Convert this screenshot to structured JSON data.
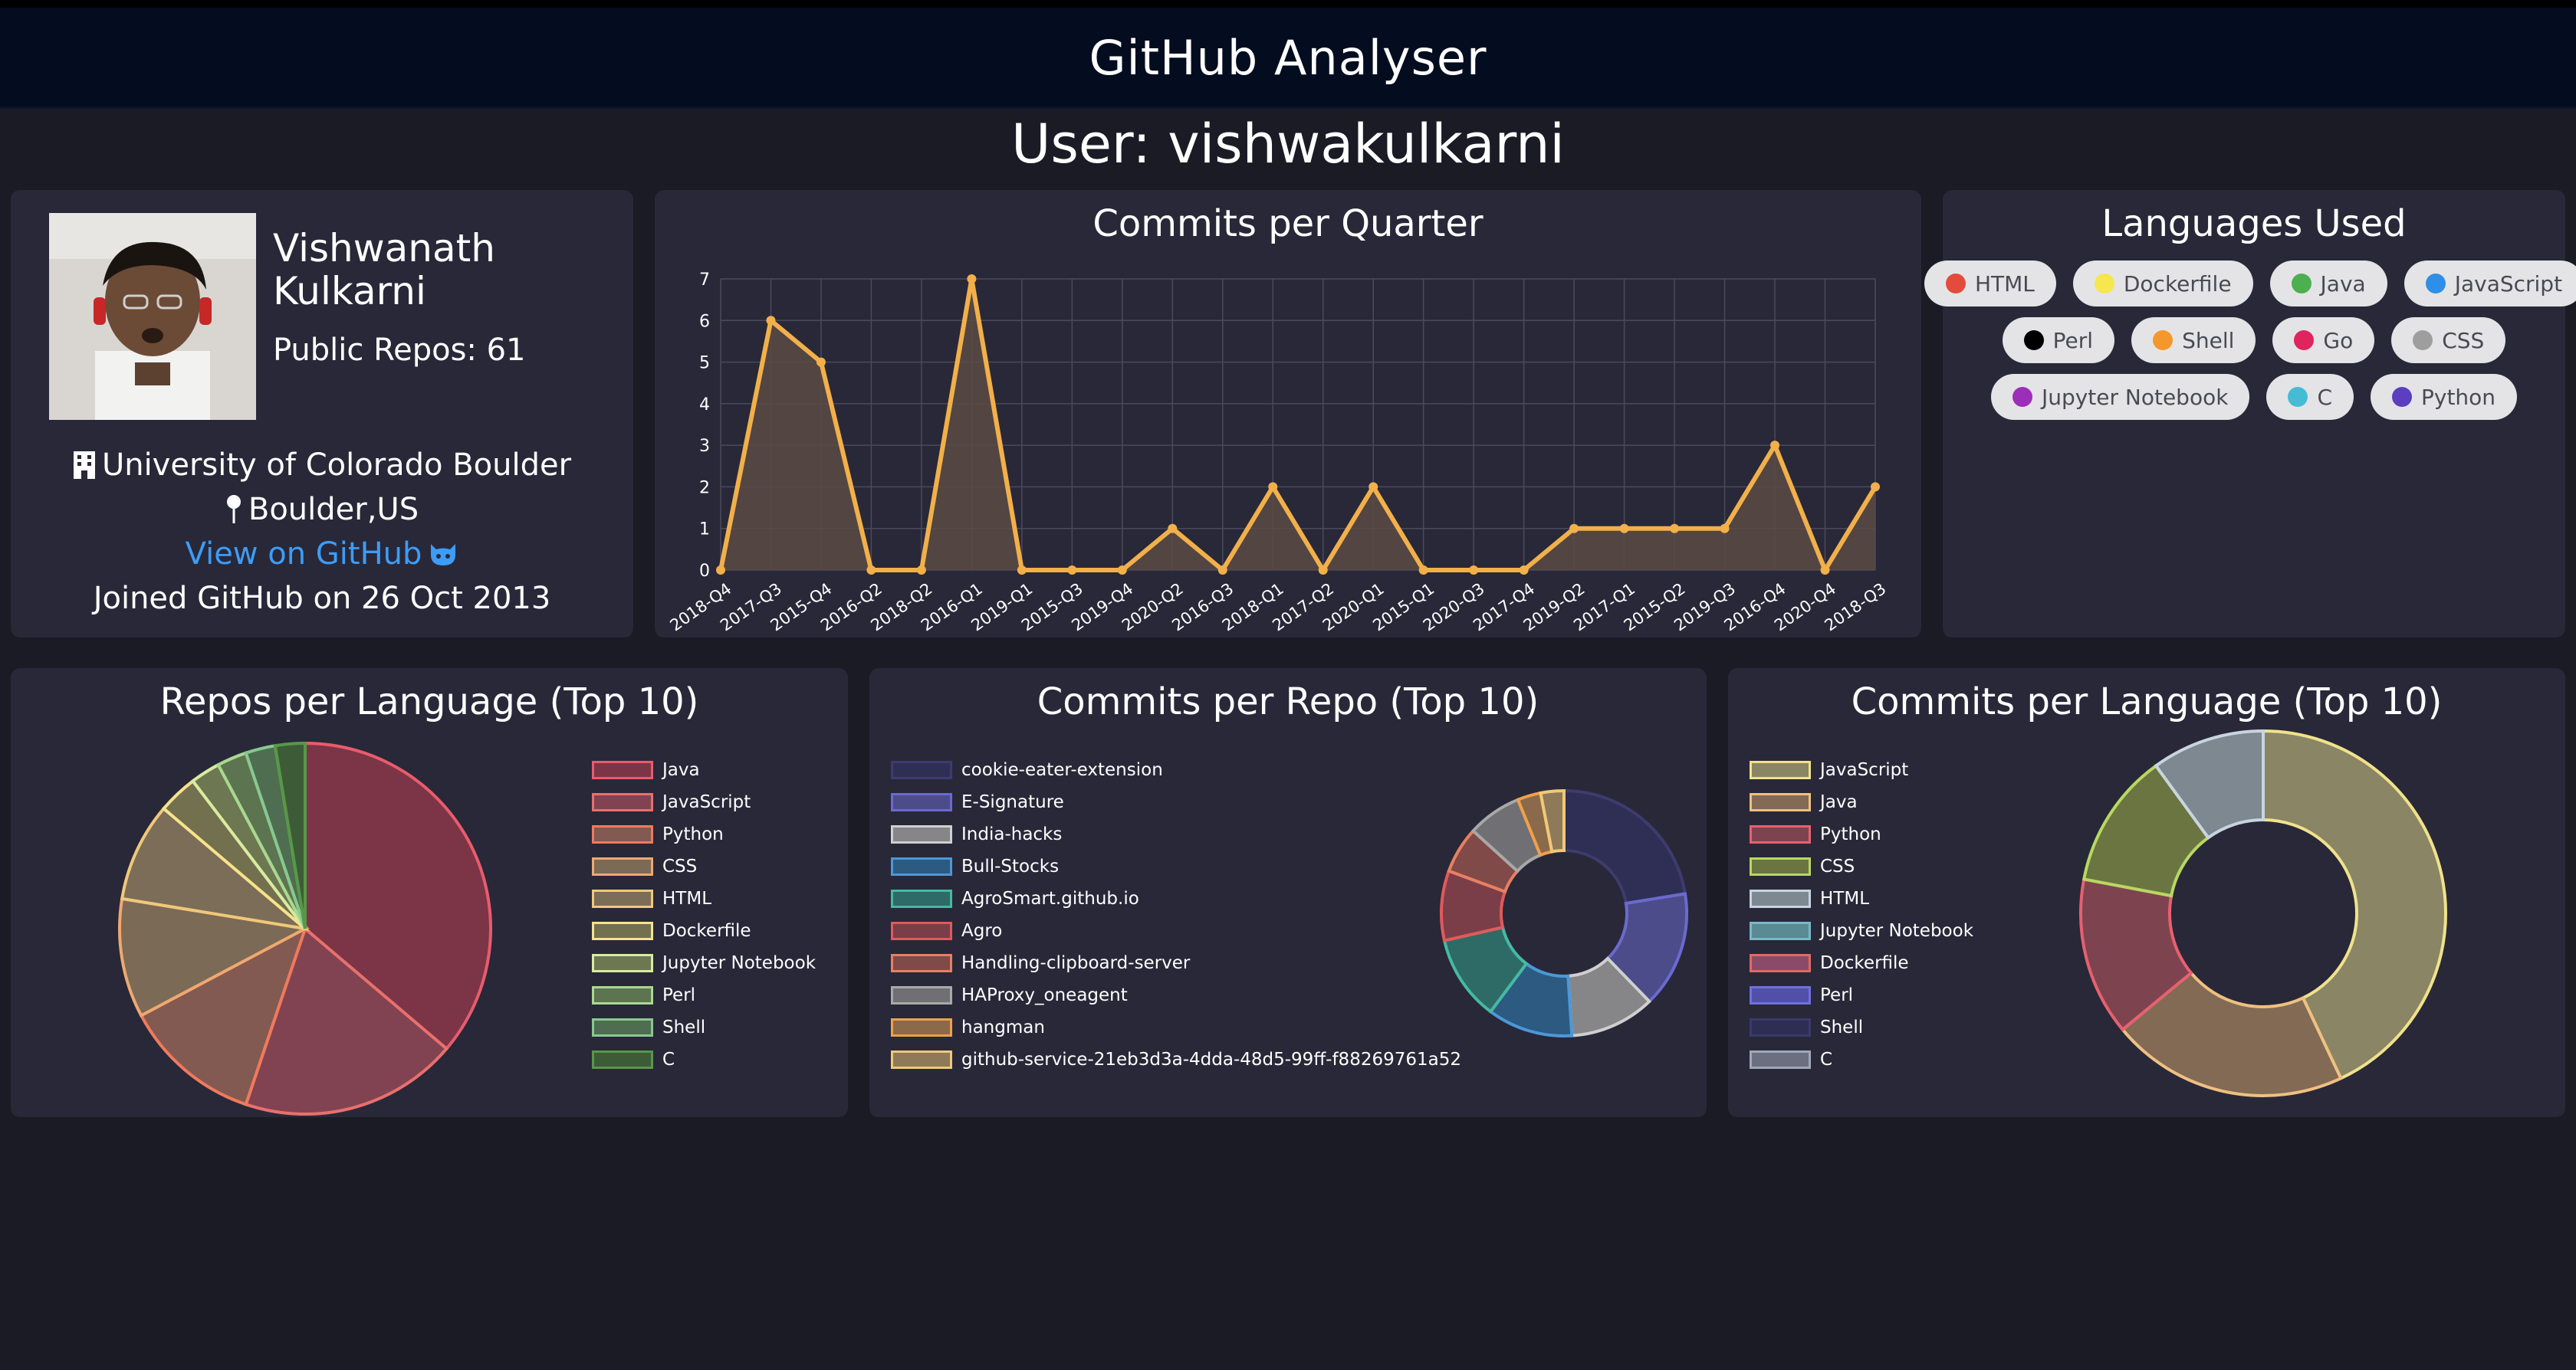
{
  "app": {
    "title": "GitHub Analyser"
  },
  "user_heading": "User: vishwakulkarni",
  "profile": {
    "name_first": "Vishwanath",
    "name_last": "Kulkarni",
    "public_repos": "Public Repos: 61",
    "company": "University of Colorado Boulder",
    "location": "Boulder,US",
    "link_text": "View on GitHub",
    "joined": "Joined GitHub on 26 Oct 2013"
  },
  "commits_per_quarter": {
    "title": "Commits per Quarter",
    "chart_data": {
      "type": "line",
      "categories": [
        "2018-Q4",
        "2017-Q3",
        "2015-Q4",
        "2016-Q2",
        "2018-Q2",
        "2016-Q1",
        "2019-Q1",
        "2015-Q3",
        "2019-Q4",
        "2020-Q2",
        "2016-Q3",
        "2018-Q1",
        "2017-Q2",
        "2020-Q1",
        "2015-Q1",
        "2020-Q3",
        "2017-Q4",
        "2019-Q2",
        "2017-Q1",
        "2015-Q2",
        "2019-Q3",
        "2016-Q4",
        "2020-Q4",
        "2018-Q3"
      ],
      "values": [
        0,
        6,
        5,
        0,
        0,
        7,
        0,
        0,
        0,
        1,
        0,
        2,
        0,
        2,
        0,
        0,
        0,
        1,
        1,
        1,
        1,
        3,
        0,
        2
      ],
      "ylim": [
        0,
        7
      ],
      "yticks": [
        "0",
        "1",
        "2",
        "3",
        "4",
        "5",
        "6",
        "7"
      ],
      "grid": true,
      "line_color": "#f2b04a",
      "fill_color": "#5a4a43"
    }
  },
  "languages_used": {
    "title": "Languages Used",
    "rows": [
      [
        {
          "label": "HTML",
          "color": "#e34c3c"
        },
        {
          "label": "Dockerfile",
          "color": "#f5e74d"
        },
        {
          "label": "Java",
          "color": "#4caf50"
        },
        {
          "label": "JavaScript",
          "color": "#2f8ee8"
        }
      ],
      [
        {
          "label": "Perl",
          "color": "#000000"
        },
        {
          "label": "Shell",
          "color": "#f4982c"
        },
        {
          "label": "Go",
          "color": "#e0245e"
        },
        {
          "label": "CSS",
          "color": "#9e9e9e"
        }
      ],
      [
        {
          "label": "Jupyter Notebook",
          "color": "#9c2fb8"
        },
        {
          "label": "C",
          "color": "#45bcd4"
        },
        {
          "label": "Python",
          "color": "#5c3fc0"
        }
      ]
    ]
  },
  "repos_per_language": {
    "title": "Repos per Language (Top 10)",
    "chart_data": {
      "type": "pie",
      "labels": [
        "Java",
        "JavaScript",
        "Python",
        "CSS",
        "HTML",
        "Dockerfile",
        "Jupyter Notebook",
        "Perl",
        "Shell",
        "C"
      ],
      "values": [
        21,
        11,
        7,
        6,
        5,
        2,
        1.5,
        1.5,
        1.5,
        1.5
      ],
      "fill_colors": [
        "#7b3547",
        "#814352",
        "#825a52",
        "#7b6a55",
        "#7b6d58",
        "#72704f",
        "#6d7751",
        "#5d7450",
        "#4f6d50",
        "#3e5b37"
      ],
      "border_colors": [
        "#e85c6c",
        "#e8706c",
        "#f07a5c",
        "#f0a870",
        "#f0c878",
        "#f5e28a",
        "#d8eba0",
        "#a8d890",
        "#88c890",
        "#589848"
      ]
    }
  },
  "commits_per_repo": {
    "title": "Commits per Repo (Top 10)",
    "chart_data": {
      "type": "pie",
      "donut": true,
      "labels": [
        "cookie-eater-extension",
        "E-Signature",
        "India-hacks",
        "Bull-Stocks",
        "AgroSmart.github.io",
        "Agro",
        "Handling-clipboard-server",
        "HAProxy_oneagent",
        "hangman",
        "github-service-21eb3d3a-4dda-48d5-99ff-f88269761a52"
      ],
      "values": [
        22,
        15,
        11,
        11,
        11,
        9,
        6,
        7,
        3,
        3
      ],
      "fill_colors": [
        "#2f2f55",
        "#4c4c8a",
        "#868689",
        "#2c5a80",
        "#2e6a66",
        "#7a3e48",
        "#7f4a48",
        "#707074",
        "#8a6a4a",
        "#8e7a58"
      ],
      "border_colors": [
        "#3c3c6e",
        "#6a6ad0",
        "#cfcfcf",
        "#4c98d8",
        "#45b9a6",
        "#e05a5a",
        "#e88060",
        "#a8a8a8",
        "#f0a04a",
        "#f0c878"
      ]
    }
  },
  "commits_per_language": {
    "title": "Commits per Language (Top 10)",
    "chart_data": {
      "type": "pie",
      "donut": true,
      "labels": [
        "JavaScript",
        "Java",
        "Python",
        "CSS",
        "HTML",
        "Jupyter Notebook",
        "Dockerfile",
        "Perl",
        "Shell",
        "C"
      ],
      "values": [
        43,
        21,
        14,
        12,
        10,
        0,
        0,
        0,
        0,
        0
      ],
      "fill_colors": [
        "#8a8565",
        "#826a55",
        "#7d4450",
        "#6a7542",
        "#7d8890",
        "#5a8b94",
        "#8c4a6a",
        "#5050a8",
        "#2e2e55",
        "#6a7080"
      ],
      "border_colors": [
        "#f0e28a",
        "#f0c080",
        "#e86070",
        "#b8d860",
        "#c8d4e0",
        "#7ab8c8",
        "#e06a60",
        "#7070e0",
        "#3a3a6a",
        "#a0a8b8"
      ]
    }
  }
}
